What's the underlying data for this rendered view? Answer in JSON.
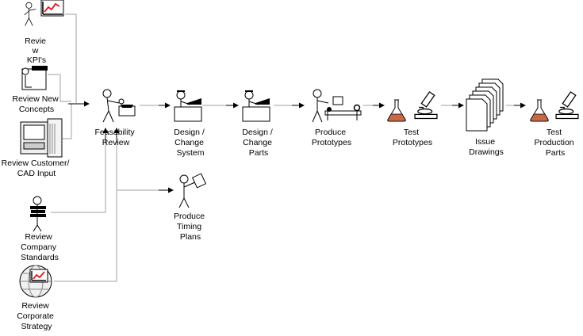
{
  "colors": {
    "accent": "#e01818",
    "liquid": "#c86848",
    "connector": "#a0a0a0"
  },
  "labels": {
    "review_kpis": [
      "Revie",
      "w",
      "KPI's"
    ],
    "review_new_concepts": [
      "Review New",
      "Concepts"
    ],
    "review_customer_cad": [
      "Review Customer/",
      "CAD Input"
    ],
    "review_company_standards": [
      "Review",
      "Company",
      "Standards"
    ],
    "review_corporate_strategy": [
      "Review",
      "Corporate",
      "Strategy"
    ],
    "feasability_review": [
      "Feasability",
      "Review"
    ],
    "design_change_system": [
      "Design /",
      "Change",
      "System"
    ],
    "design_change_parts": [
      "Design /",
      "Change",
      "Parts"
    ],
    "produce_prototypes": [
      "Produce",
      "Prototypes"
    ],
    "test_prototypes": [
      "Test",
      "Prototypes"
    ],
    "issue_drawings": [
      "Issue",
      "Drawings"
    ],
    "test_production_parts": [
      "Test",
      "Production",
      "Parts"
    ],
    "produce_timing_plans": [
      "Produce",
      "Timing",
      "Plans"
    ]
  },
  "icons": {
    "review_kpis": "person-with-chart-icon",
    "review_new_concepts": "person-at-desk-icon",
    "review_customer_cad": "cad-workstation-icon",
    "review_company_standards": "person-with-books-icon",
    "review_corporate_strategy": "globe-chart-icon",
    "feasability_review": "person-inspecting-icon",
    "design_change_system": "designer-at-desk-icon",
    "design_change_parts": "designer-at-desk-icon",
    "produce_prototypes": "machinist-icon",
    "test_prototypes": "lab-flask-microscope-icon",
    "issue_drawings": "document-stack-icon",
    "test_production_parts": "lab-flask-microscope-icon",
    "produce_timing_plans": "person-with-document-icon"
  }
}
